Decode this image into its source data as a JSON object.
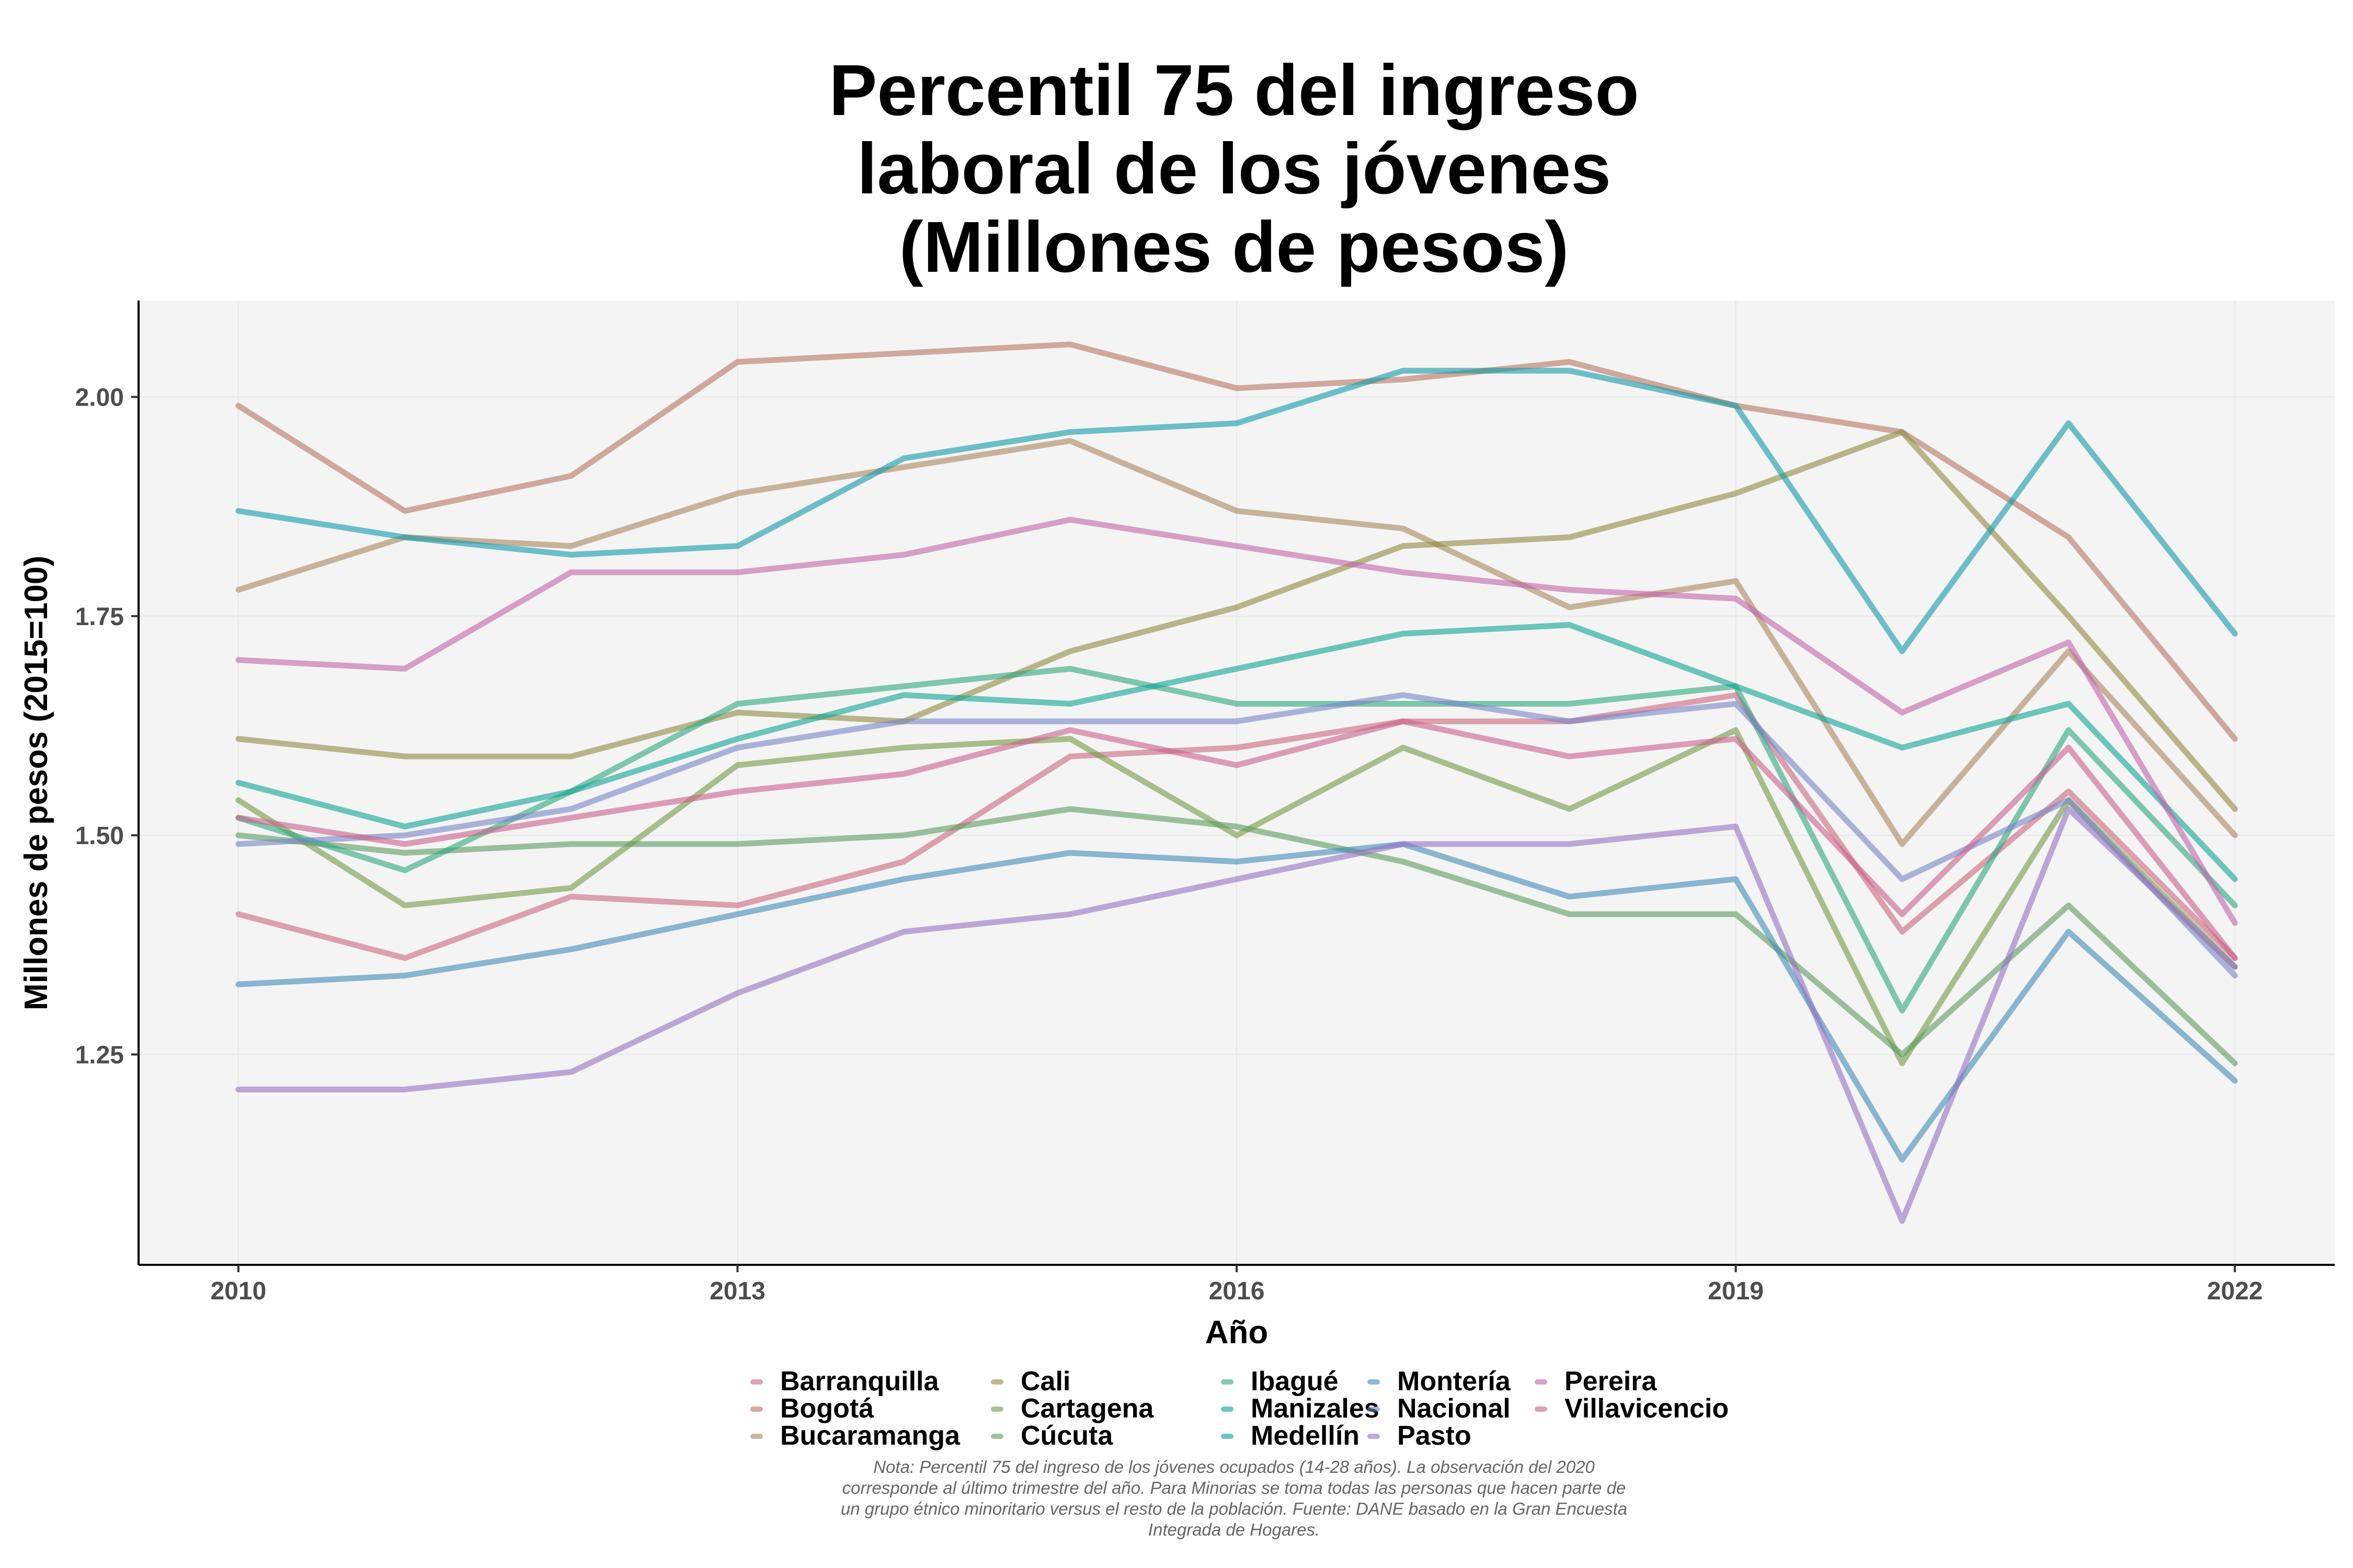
{
  "chart_data": {
    "type": "line",
    "title_lines": [
      "Percentil 75 del ingreso",
      "laboral de los jóvenes",
      "(Millones de pesos)"
    ],
    "xlabel": "Año",
    "ylabel": "Millones de pesos (2015=100)",
    "x": [
      2010,
      2011,
      2012,
      2013,
      2014,
      2015,
      2016,
      2017,
      2018,
      2019,
      2020,
      2021,
      2022
    ],
    "xlim": [
      2009.4,
      2022.6
    ],
    "ylim": [
      1.01,
      2.11
    ],
    "x_ticks": [
      2010,
      2013,
      2016,
      2019,
      2022
    ],
    "x_tick_labels": [
      "2010",
      "2013",
      "2016",
      "2019",
      "2022"
    ],
    "y_ticks": [
      1.25,
      1.5,
      1.75,
      2.0
    ],
    "y_tick_labels": [
      "1.25",
      "1.50",
      "1.75",
      "2.00"
    ],
    "grid": true,
    "legend_position": "bottom",
    "series": [
      {
        "name": "Barranquilla",
        "color": "#c9657e",
        "values": [
          1.41,
          1.36,
          1.43,
          1.42,
          1.47,
          1.59,
          1.6,
          1.63,
          1.63,
          1.66,
          1.39,
          1.55,
          1.36
        ]
      },
      {
        "name": "Bogotá",
        "color": "#b5755f",
        "values": [
          1.99,
          1.87,
          1.91,
          2.04,
          2.05,
          2.06,
          2.01,
          2.02,
          2.04,
          1.99,
          1.96,
          1.84,
          1.61
        ]
      },
      {
        "name": "Bucaramanga",
        "color": "#a8865b",
        "values": [
          1.78,
          1.84,
          1.83,
          1.89,
          1.92,
          1.95,
          1.87,
          1.85,
          1.76,
          1.79,
          1.49,
          1.71,
          1.5
        ]
      },
      {
        "name": "Cali",
        "color": "#8e8b3d",
        "values": [
          1.61,
          1.59,
          1.59,
          1.64,
          1.63,
          1.71,
          1.76,
          1.83,
          1.84,
          1.89,
          1.96,
          1.75,
          1.53
        ]
      },
      {
        "name": "Cartagena",
        "color": "#719a42",
        "values": [
          1.54,
          1.42,
          1.44,
          1.58,
          1.6,
          1.61,
          1.5,
          1.6,
          1.53,
          1.62,
          1.24,
          1.54,
          1.35
        ]
      },
      {
        "name": "Cúcuta",
        "color": "#5b9b5d",
        "values": [
          1.5,
          1.48,
          1.49,
          1.49,
          1.5,
          1.53,
          1.51,
          1.47,
          1.41,
          1.41,
          1.25,
          1.42,
          1.24
        ]
      },
      {
        "name": "Ibagué",
        "color": "#2ca67e",
        "values": [
          1.52,
          1.46,
          1.55,
          1.65,
          1.67,
          1.69,
          1.65,
          1.65,
          1.65,
          1.67,
          1.3,
          1.62,
          1.42
        ]
      },
      {
        "name": "Manizales",
        "color": "#0ba396",
        "values": [
          1.56,
          1.51,
          1.55,
          1.61,
          1.66,
          1.65,
          1.69,
          1.73,
          1.74,
          1.67,
          1.6,
          1.65,
          1.45
        ]
      },
      {
        "name": "Medellín",
        "color": "#0f9aa9",
        "values": [
          1.87,
          1.84,
          1.82,
          1.83,
          1.93,
          1.96,
          1.97,
          2.03,
          2.03,
          1.99,
          1.71,
          1.97,
          1.73
        ]
      },
      {
        "name": "Montería",
        "color": "#3f8ab8",
        "values": [
          1.33,
          1.34,
          1.37,
          1.41,
          1.45,
          1.48,
          1.47,
          1.49,
          1.43,
          1.45,
          1.13,
          1.39,
          1.22
        ]
      },
      {
        "name": "Nacional",
        "color": "#7585c4",
        "values": [
          1.49,
          1.5,
          1.53,
          1.6,
          1.63,
          1.63,
          1.63,
          1.66,
          1.63,
          1.65,
          1.45,
          1.54,
          1.34
        ]
      },
      {
        "name": "Pasto",
        "color": "#9271c2",
        "values": [
          1.21,
          1.21,
          1.23,
          1.32,
          1.39,
          1.41,
          1.45,
          1.49,
          1.49,
          1.51,
          1.06,
          1.53,
          1.35
        ]
      },
      {
        "name": "Pereira",
        "color": "#c062a8",
        "values": [
          1.7,
          1.69,
          1.8,
          1.8,
          1.82,
          1.86,
          1.83,
          1.8,
          1.78,
          1.77,
          1.64,
          1.72,
          1.4
        ]
      },
      {
        "name": "Villavicencio",
        "color": "#c95f8a",
        "values": [
          1.52,
          1.49,
          1.52,
          1.55,
          1.57,
          1.62,
          1.58,
          1.63,
          1.59,
          1.61,
          1.41,
          1.6,
          1.36
        ]
      }
    ],
    "note_lines": [
      "Nota: Percentil 75 del ingreso de los jóvenes ocupados (14-28 años). La observación del 2020",
      "corresponde al último trimestre del año. Para Minorias se toma todas las personas que hacen parte de",
      "un grupo étnico minoritario versus el resto de la población. Fuente: DANE basado en la Gran Encuesta",
      "Integrada de Hogares."
    ]
  }
}
